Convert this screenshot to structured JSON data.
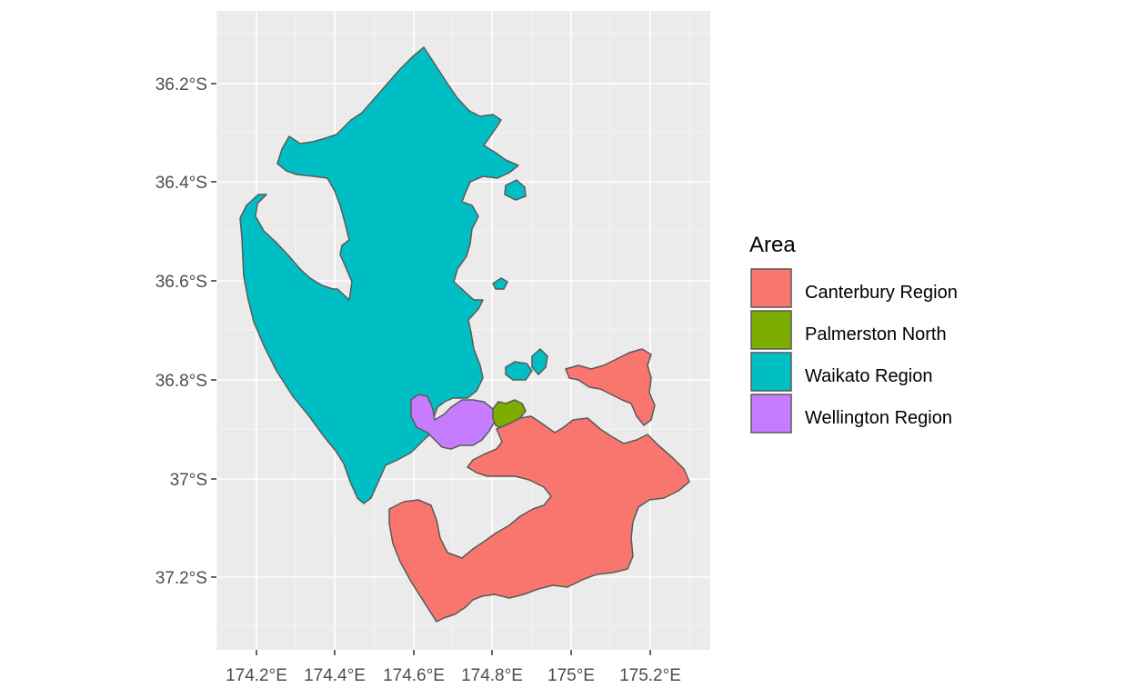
{
  "map": {
    "x_ticks": [
      "174.2°E",
      "174.4°E",
      "174.6°E",
      "174.8°E",
      "175°E",
      "175.2°E"
    ],
    "y_ticks": [
      "36.2°S",
      "36.4°S",
      "36.6°S",
      "36.8°S",
      "37°S",
      "37.2°S"
    ],
    "panel_color": "#ebebeb",
    "grid_color": "#ffffff",
    "border_color": "#595959"
  },
  "legend": {
    "title": "Area",
    "items": [
      {
        "label": "Canterbury Region",
        "color": "#F8766D"
      },
      {
        "label": "Palmerston North",
        "color": "#7CAE00"
      },
      {
        "label": "Waikato Region",
        "color": "#00BFC4"
      },
      {
        "label": "Wellington Region",
        "color": "#C77CFF"
      }
    ]
  }
}
